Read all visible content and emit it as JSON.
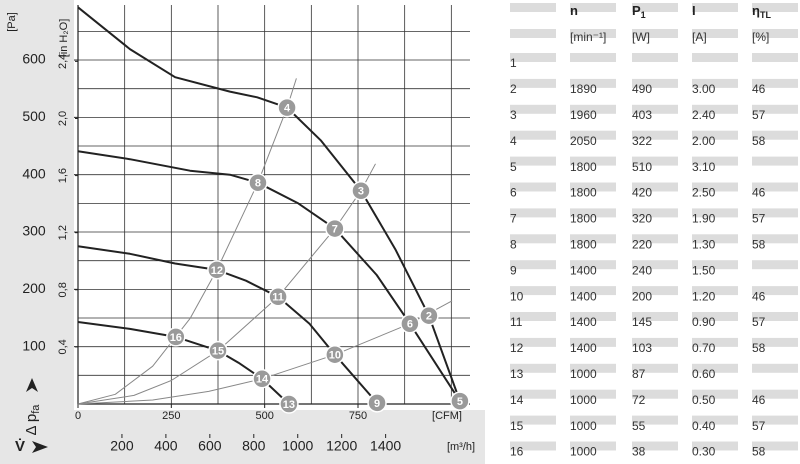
{
  "chart_data": {
    "type": "line",
    "y_unit": "[Pa]",
    "y2_unit": "[in H₂O]",
    "y_label": "Δ p",
    "y_label_sub": "fa",
    "x_label": "V̇",
    "x_unit": "[CFM]",
    "x2_unit": "[m³/h]",
    "xlim": [
      0,
      1050
    ],
    "xticks": [
      0,
      250,
      500,
      750
    ],
    "x2lim": [
      0,
      1784
    ],
    "x2ticks": [
      200,
      400,
      600,
      800,
      1000,
      1200,
      1400
    ],
    "ylim": [
      0,
      696
    ],
    "yticks": [
      100,
      200,
      300,
      400,
      500,
      600
    ],
    "y2lim": [
      0,
      2.795
    ],
    "y2ticks": [
      {
        "value": 0.4,
        "label": "0,4"
      },
      {
        "value": 0.8,
        "label": "0,8"
      },
      {
        "value": 1.2,
        "label": "1,2"
      },
      {
        "value": 1.6,
        "label": "1,6"
      },
      {
        "value": 2,
        "label": "2,0"
      },
      {
        "value": 2.4,
        "label": "2,4"
      }
    ],
    "grid": true,
    "xgrid": [
      0,
      125,
      250,
      375,
      500,
      625,
      750,
      875,
      1000
    ],
    "ygrid": [
      50,
      100,
      150,
      200,
      250,
      300,
      350,
      400,
      450,
      500,
      550,
      600,
      650
    ],
    "series": [
      {
        "color": "#222222",
        "x": [
          0,
          139,
          260,
          407,
          480,
          560,
          650,
          758,
          850,
          940,
          1023
        ],
        "values": [
          692,
          619,
          570,
          545,
          535,
          517,
          460,
          372,
          270,
          154,
          5
        ]
      },
      {
        "color": "#222222",
        "x": [
          0,
          139,
          300,
          407,
          482,
          590,
          688,
          800,
          889,
          1023
        ],
        "values": [
          441,
          427,
          407,
          400,
          386,
          350,
          306,
          225,
          140,
          5
        ]
      },
      {
        "color": "#222222",
        "x": [
          0,
          139,
          260,
          372,
          450,
          536,
          620,
          688,
          801
        ],
        "values": [
          275,
          262,
          245,
          234,
          215,
          187,
          140,
          86,
          2
        ]
      },
      {
        "color": "#222222",
        "x": [
          0,
          139,
          262,
          375,
          430,
          493,
          565
        ],
        "values": [
          143,
          131,
          117,
          93,
          72,
          44,
          0
        ]
      },
      {
        "color": "#888888",
        "x": [
          0,
          100,
          200,
          300,
          372,
          482,
          560,
          585
        ],
        "values": [
          0,
          17,
          66,
          149,
          234,
          386,
          517,
          568
        ]
      },
      {
        "color": "#888888",
        "x": [
          0,
          150,
          250,
          375,
          536,
          688,
          758,
          797
        ],
        "values": [
          0,
          15,
          41,
          93,
          187,
          306,
          372,
          419
        ]
      },
      {
        "color": "#888888",
        "x": [
          0,
          200,
          350,
          493,
          688,
          889,
          1002
        ],
        "values": [
          0,
          7,
          22,
          44,
          86,
          140,
          180
        ]
      }
    ],
    "points": [
      {
        "label": "2",
        "x": 940,
        "y": 154
      },
      {
        "label": "3",
        "x": 758,
        "y": 372
      },
      {
        "label": "4",
        "x": 560,
        "y": 517
      },
      {
        "label": "5",
        "x": 1023,
        "y": 5
      },
      {
        "label": "6",
        "x": 889,
        "y": 140
      },
      {
        "label": "7",
        "x": 688,
        "y": 306
      },
      {
        "label": "8",
        "x": 482,
        "y": 386
      },
      {
        "label": "9",
        "x": 801,
        "y": 2
      },
      {
        "label": "10",
        "x": 688,
        "y": 86
      },
      {
        "label": "11",
        "x": 536,
        "y": 187
      },
      {
        "label": "12",
        "x": 372,
        "y": 234
      },
      {
        "label": "13",
        "x": 565,
        "y": 0
      },
      {
        "label": "14",
        "x": 493,
        "y": 44
      },
      {
        "label": "15",
        "x": 375,
        "y": 93
      },
      {
        "label": "16",
        "x": 262,
        "y": 117
      }
    ]
  },
  "table": {
    "columns": [
      {
        "name": "n",
        "unit": "[min⁻¹]"
      },
      {
        "name": "P",
        "sub": "1",
        "unit": "[W]"
      },
      {
        "name": "I",
        "unit": "[A]"
      },
      {
        "name": "η",
        "sub": "TL",
        "unit": "[%]"
      }
    ],
    "rows": [
      [
        "1",
        null,
        null,
        null,
        null
      ],
      [
        "2",
        "1890",
        "490",
        "3.00",
        "46"
      ],
      [
        "3",
        "1960",
        "403",
        "2.40",
        "57"
      ],
      [
        "4",
        "2050",
        "322",
        "2.00",
        "58"
      ],
      [
        "5",
        "1800",
        "510",
        "3.10",
        null
      ],
      [
        "6",
        "1800",
        "420",
        "2.50",
        "46"
      ],
      [
        "7",
        "1800",
        "320",
        "1.90",
        "57"
      ],
      [
        "8",
        "1800",
        "220",
        "1.30",
        "58"
      ],
      [
        "9",
        "1400",
        "240",
        "1.50",
        null
      ],
      [
        "10",
        "1400",
        "200",
        "1.20",
        "46"
      ],
      [
        "11",
        "1400",
        "145",
        "0.90",
        "57"
      ],
      [
        "12",
        "1400",
        "103",
        "0.70",
        "58"
      ],
      [
        "13",
        "1000",
        "87",
        "0.60",
        null
      ],
      [
        "14",
        "1000",
        "72",
        "0.50",
        "46"
      ],
      [
        "15",
        "1000",
        "55",
        "0.40",
        "57"
      ],
      [
        "16",
        "1000",
        "38",
        "0.30",
        "58"
      ]
    ]
  }
}
